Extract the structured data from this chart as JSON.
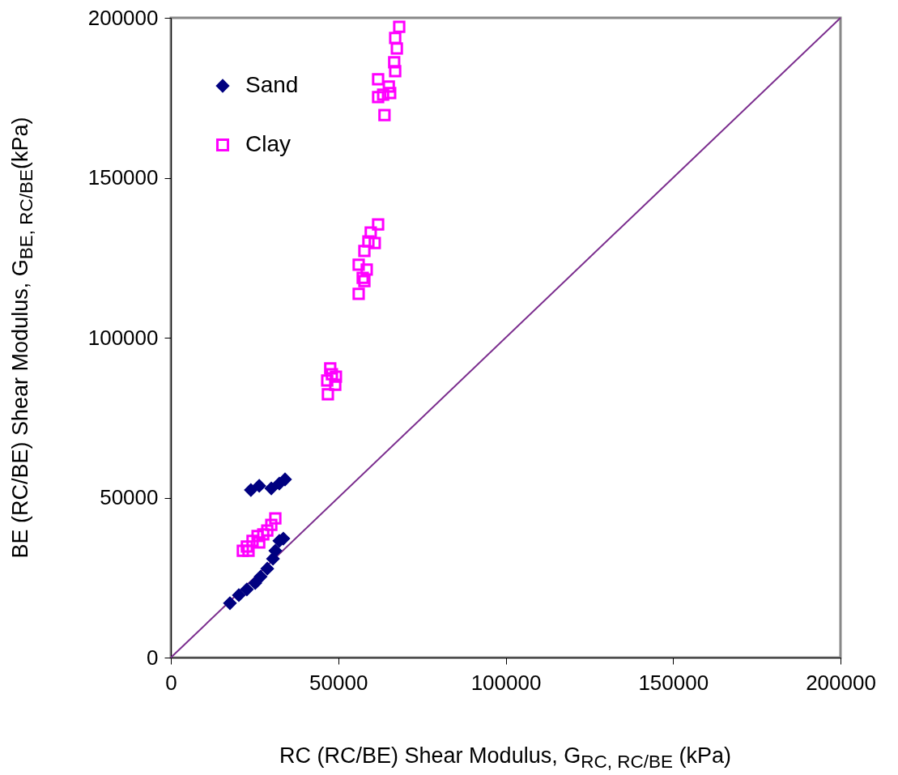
{
  "chart_data": {
    "type": "scatter",
    "xlabel": "RC (RC/BE) Shear Modulus, G$_{RC, RC/BE}$ (kPa)",
    "ylabel": "BE (RC/BE) Shear Modulus, G$_{BE, RC/BE}$(kPa)",
    "xlim": [
      0,
      200000
    ],
    "ylim": [
      0,
      200000
    ],
    "xticks": [
      0,
      50000,
      100000,
      150000,
      200000
    ],
    "yticks": [
      0,
      50000,
      100000,
      150000,
      200000
    ],
    "grid": false,
    "legend": "top left",
    "series": [
      {
        "name": "Sand",
        "color": "#000080",
        "marker": "diamond",
        "x": [
          17650,
          20300,
          22700,
          25200,
          26800,
          28800,
          30500,
          31200,
          32400,
          33600,
          23900,
          26400,
          30000,
          32400,
          34100
        ],
        "values": [
          17000,
          19500,
          21300,
          23300,
          25300,
          27800,
          30900,
          33400,
          36500,
          37200,
          52400,
          53700,
          52900,
          54400,
          55700
        ]
      },
      {
        "name": "Clay",
        "color": "#ff00ff",
        "marker": "square",
        "x": [
          21500,
          22700,
          24400,
          25900,
          27600,
          28800,
          30000,
          31200,
          23200,
          26400,
          46700,
          46900,
          48100,
          49300,
          47600,
          49100,
          56100,
          57300,
          56100,
          57800,
          59000,
          60900,
          59700,
          61900,
          58500,
          57800,
          68200,
          67000,
          67500,
          66700,
          67000,
          61900,
          65100,
          63400,
          61900,
          65500,
          63800
        ],
        "values": [
          33400,
          34700,
          36500,
          38000,
          38500,
          39700,
          41500,
          43500,
          33400,
          36000,
          86600,
          82300,
          88600,
          87800,
          90400,
          85300,
          113700,
          118700,
          122800,
          127100,
          130100,
          129600,
          132900,
          135400,
          121300,
          117700,
          197200,
          193700,
          190400,
          186100,
          183300,
          180800,
          178500,
          176000,
          175200,
          176500,
          169600
        ]
      },
      {
        "type": "line",
        "color": "#7b2d8e",
        "x": [
          0,
          200000
        ],
        "values": [
          0,
          200000
        ]
      }
    ]
  }
}
